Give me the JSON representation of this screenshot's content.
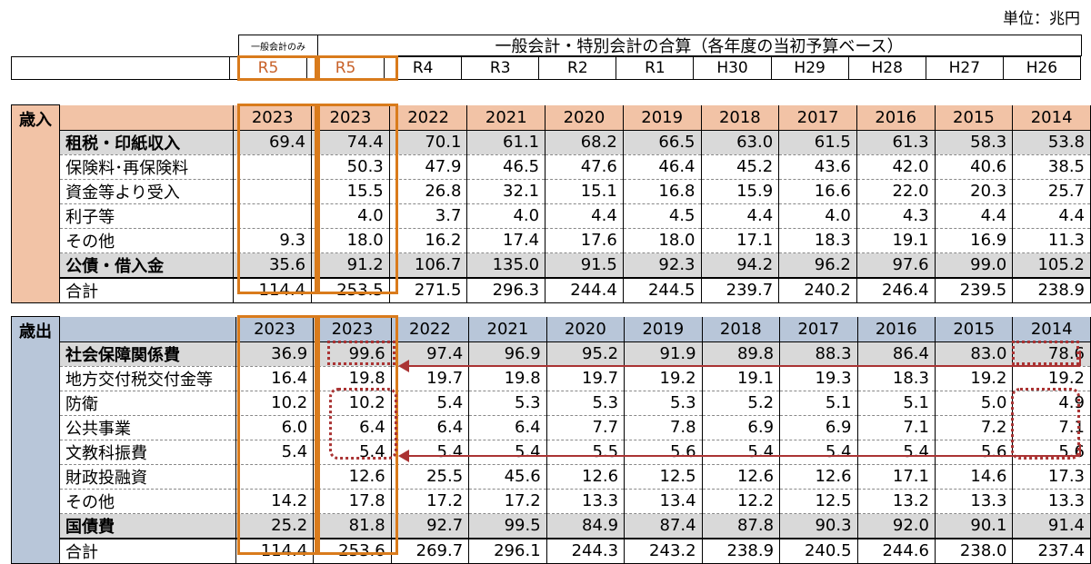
{
  "unit": "単位：兆円",
  "header_small": "一般会計のみ",
  "header_main": "一般会計・特別会計の合算（各年度の当初予算ベース）",
  "eras": [
    "R5",
    "R5",
    "R4",
    "R3",
    "R2",
    "R1",
    "H30",
    "H29",
    "H28",
    "H27",
    "H26"
  ],
  "years": [
    "2023",
    "2023",
    "2022",
    "2021",
    "2020",
    "2019",
    "2018",
    "2017",
    "2016",
    "2015",
    "2014"
  ],
  "colors": {
    "revenue": "#f2c3a6",
    "expenditure": "#b8c6d9",
    "highlight": "#d97b1c",
    "marker": "#a33333"
  },
  "chart_data": {
    "type": "table",
    "columns": [
      "2023",
      "2023",
      "2022",
      "2021",
      "2020",
      "2019",
      "2018",
      "2017",
      "2016",
      "2015",
      "2014"
    ],
    "sections": [
      {
        "name": "歳入",
        "rows": [
          {
            "label": "租税・印紙収入",
            "values": [
              "69.4",
              "74.4",
              "70.1",
              "61.1",
              "68.2",
              "66.5",
              "63.0",
              "61.5",
              "61.3",
              "58.3",
              "53.8"
            ]
          },
          {
            "label": "保険料･再保険料",
            "values": [
              "",
              "50.3",
              "47.9",
              "46.5",
              "47.6",
              "46.4",
              "45.2",
              "43.6",
              "42.0",
              "40.6",
              "38.5"
            ]
          },
          {
            "label": "資金等より受入",
            "values": [
              "",
              "15.5",
              "26.8",
              "32.1",
              "15.1",
              "16.8",
              "15.9",
              "16.6",
              "22.0",
              "20.3",
              "25.7"
            ]
          },
          {
            "label": "利子等",
            "values": [
              "",
              "4.0",
              "3.7",
              "4.0",
              "4.4",
              "4.5",
              "4.4",
              "4.0",
              "4.3",
              "4.4",
              "4.4"
            ]
          },
          {
            "label": "その他",
            "values": [
              "9.3",
              "18.0",
              "16.2",
              "17.4",
              "17.6",
              "18.0",
              "17.1",
              "18.3",
              "19.1",
              "16.9",
              "11.3"
            ]
          },
          {
            "label": "公債・借入金",
            "values": [
              "35.6",
              "91.2",
              "106.7",
              "135.0",
              "91.5",
              "92.3",
              "94.2",
              "96.2",
              "97.6",
              "99.0",
              "105.2"
            ]
          },
          {
            "label": "合計",
            "values": [
              "114.4",
              "253.5",
              "271.5",
              "296.3",
              "244.4",
              "244.5",
              "239.7",
              "240.2",
              "246.4",
              "239.5",
              "238.9"
            ]
          }
        ]
      },
      {
        "name": "歳出",
        "rows": [
          {
            "label": "社会保障関係費",
            "values": [
              "36.9",
              "99.6",
              "97.4",
              "96.9",
              "95.2",
              "91.9",
              "89.8",
              "88.3",
              "86.4",
              "83.0",
              "78.6"
            ]
          },
          {
            "label": "地方交付税交付金等",
            "values": [
              "16.4",
              "19.8",
              "19.7",
              "19.8",
              "19.7",
              "19.2",
              "19.1",
              "19.3",
              "18.3",
              "19.2",
              "19.2"
            ]
          },
          {
            "label": "防衛",
            "values": [
              "10.2",
              "10.2",
              "5.4",
              "5.3",
              "5.3",
              "5.3",
              "5.2",
              "5.1",
              "5.1",
              "5.0",
              "4.9"
            ]
          },
          {
            "label": "公共事業",
            "values": [
              "6.0",
              "6.4",
              "6.4",
              "6.4",
              "7.7",
              "7.8",
              "6.9",
              "6.9",
              "7.1",
              "7.2",
              "7.1"
            ]
          },
          {
            "label": "文教科振費",
            "values": [
              "5.4",
              "5.4",
              "5.4",
              "5.4",
              "5.5",
              "5.6",
              "5.4",
              "5.4",
              "5.4",
              "5.6",
              "5.6"
            ]
          },
          {
            "label": "財政投融資",
            "values": [
              "",
              "12.6",
              "25.5",
              "45.6",
              "12.6",
              "12.5",
              "12.6",
              "12.6",
              "17.1",
              "14.6",
              "17.3"
            ]
          },
          {
            "label": "その他",
            "values": [
              "14.2",
              "17.8",
              "17.2",
              "17.2",
              "13.3",
              "13.4",
              "12.2",
              "12.5",
              "13.2",
              "13.3",
              "13.3"
            ]
          },
          {
            "label": "国債費",
            "values": [
              "25.2",
              "81.8",
              "92.7",
              "99.5",
              "84.9",
              "87.4",
              "87.8",
              "90.3",
              "92.0",
              "90.1",
              "91.4"
            ]
          },
          {
            "label": "合計",
            "values": [
              "114.4",
              "253.6",
              "269.7",
              "296.1",
              "244.3",
              "243.2",
              "238.9",
              "240.5",
              "244.6",
              "238.0",
              "237.4"
            ]
          }
        ]
      }
    ]
  }
}
